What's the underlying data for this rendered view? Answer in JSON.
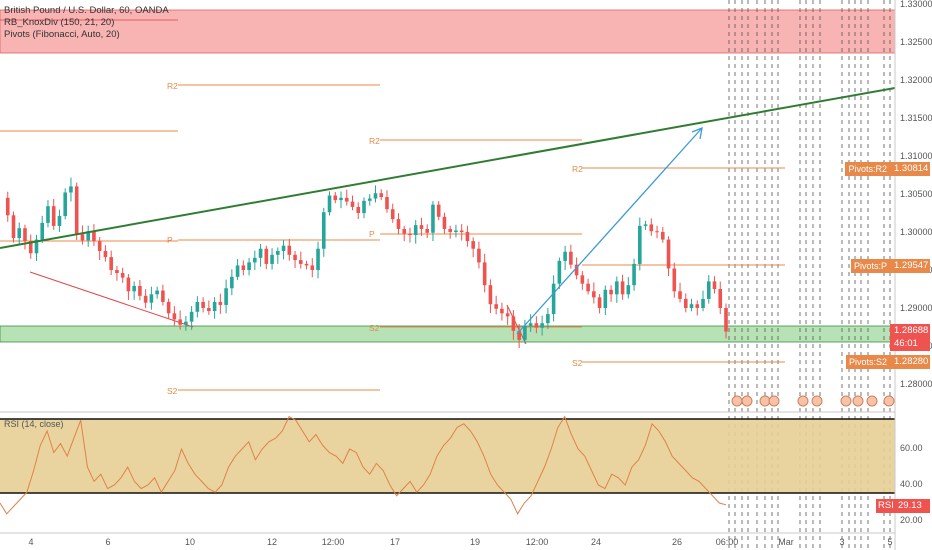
{
  "legend": {
    "symbol": "British Pound / U.S. Dollar, 60, OANDA",
    "indicator1": "RB_KnoxDiv (150, 21, 20)",
    "indicator2": "Pivots (Fibonacci, Auto, 20)"
  },
  "rsi": {
    "label": "RSI (14, close)",
    "tag": "RSI",
    "value": "29.13",
    "levels": [
      "60.00",
      "40.00",
      "20.00"
    ]
  },
  "price_axis": [
    "1.33000",
    "1.32500",
    "1.32000",
    "1.31500",
    "1.31000",
    "1.30500",
    "1.30000",
    "1.29500",
    "1.29000",
    "1.28500",
    "1.28000"
  ],
  "time_axis": [
    "4",
    "6",
    "10",
    "12",
    "12:00",
    "17",
    "19",
    "12:00",
    "24",
    "26",
    "06:00",
    "Mar",
    "3",
    "5"
  ],
  "pivot_labels": {
    "r2": "R2",
    "p": "P",
    "s2": "S2"
  },
  "tags": {
    "r2_label": "Pivots:R2",
    "r2_value": "1.30814",
    "p_label": "Pivots:P",
    "p_value": "1.29547",
    "last_value": "1.28688",
    "countdown": "46:01",
    "s2_label": "Pivots:S2",
    "s2_value": "1.28280"
  },
  "colors": {
    "up": "#26a69a",
    "down": "#ef5350",
    "pivot": "#e8894a",
    "trend": "#2e7d32",
    "arrow": "#3a9bd8",
    "resistance_zone": "#f8b3b3",
    "support_zone": "#b6e2b6",
    "rsi_band": "#e7cf96"
  },
  "chart_data": {
    "type": "candlestick",
    "close_path": [
      1.3045,
      1.3022,
      1.2992,
      1.3005,
      1.2988,
      1.2972,
      1.299,
      1.3012,
      1.3034,
      1.3008,
      1.3021,
      1.3052,
      1.306,
      1.2997,
      1.2989,
      1.3001,
      1.2988,
      1.2975,
      1.2967,
      1.295,
      1.2946,
      1.294,
      1.2922,
      1.2929,
      1.2916,
      1.2907,
      1.2918,
      1.2923,
      1.2908,
      1.2893,
      1.2885,
      1.2878,
      1.2882,
      1.2895,
      1.2908,
      1.29,
      1.2896,
      1.2908,
      1.2904,
      1.2926,
      1.2941,
      1.2956,
      1.295,
      1.296,
      1.2966,
      1.2978,
      1.2958,
      1.297,
      1.2975,
      1.2982,
      1.297,
      1.2963,
      1.2958,
      1.2956,
      1.295,
      1.2978,
      1.3026,
      1.3048,
      1.3042,
      1.3045,
      1.304,
      1.3033,
      1.3025,
      1.3041,
      1.3044,
      1.3051,
      1.3046,
      1.303,
      1.3017,
      1.3004,
      1.2998,
      1.2996,
      1.3009,
      1.3004,
      1.2999,
      1.3036,
      1.302,
      1.3004,
      1.3,
      1.3002,
      1.3,
      1.2988,
      1.2978,
      1.296,
      1.293,
      1.2905,
      1.2899,
      1.2893,
      1.2889,
      1.287,
      1.2858,
      1.2877,
      1.288,
      1.2874,
      1.288,
      1.2892,
      1.2932,
      1.2962,
      1.2974,
      1.2957,
      1.2943,
      1.2932,
      1.2922,
      1.2914,
      1.29,
      1.2924,
      1.2918,
      1.2935,
      1.2918,
      1.293,
      1.2958,
      1.3008,
      1.301,
      1.3001,
      1.3,
      1.299,
      1.2952,
      1.2922,
      1.2912,
      1.29,
      1.2905,
      1.29,
      1.2912,
      1.2935,
      1.2925,
      1.29,
      1.2869
    ],
    "rsi_path": [
      30,
      24,
      28,
      32,
      36,
      48,
      62,
      70,
      58,
      63,
      56,
      66,
      76,
      50,
      42,
      46,
      38,
      40,
      44,
      50,
      42,
      38,
      40,
      44,
      36,
      42,
      48,
      60,
      52,
      46,
      42,
      38,
      36,
      40,
      50,
      56,
      60,
      64,
      54,
      60,
      64,
      66,
      70,
      78,
      76,
      70,
      64,
      68,
      62,
      58,
      56,
      52,
      60,
      58,
      50,
      46,
      52,
      48,
      40,
      34,
      38,
      42,
      36,
      40,
      46,
      56,
      62,
      66,
      72,
      74,
      70,
      64,
      56,
      46,
      40,
      36,
      32,
      24,
      30,
      34,
      42,
      50,
      60,
      72,
      78,
      68,
      60,
      56,
      48,
      40,
      38,
      46,
      44,
      40,
      50,
      54,
      62,
      74,
      70,
      64,
      56,
      52,
      48,
      44,
      42,
      38,
      34,
      30,
      29
    ],
    "pivots": {
      "R2": 1.30814,
      "P": 1.29547,
      "S2": 1.2828
    },
    "last": 1.28688,
    "resistance_zone": [
      1.3233,
      1.3288
    ],
    "support_zone": [
      1.2855,
      1.2875
    ],
    "ylim": [
      1.276,
      1.3305
    ]
  }
}
